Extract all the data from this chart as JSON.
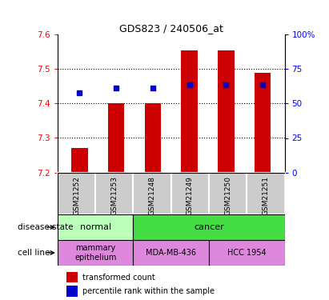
{
  "title": "GDS823 / 240506_at",
  "samples": [
    "GSM21252",
    "GSM21253",
    "GSM21248",
    "GSM21249",
    "GSM21250",
    "GSM21251"
  ],
  "bar_bottoms": [
    7.2,
    7.2,
    7.2,
    7.2,
    7.2,
    7.2
  ],
  "bar_tops": [
    7.27,
    7.4,
    7.4,
    7.555,
    7.555,
    7.49
  ],
  "percentile_values": [
    7.43,
    7.445,
    7.445,
    7.455,
    7.455,
    7.455
  ],
  "ylim_left": [
    7.2,
    7.6
  ],
  "ylim_right": [
    0,
    100
  ],
  "yticks_left": [
    7.2,
    7.3,
    7.4,
    7.5,
    7.6
  ],
  "yticks_right": [
    0,
    25,
    50,
    75,
    100
  ],
  "ytick_right_labels": [
    "0",
    "25",
    "50",
    "75",
    "100%"
  ],
  "bar_color": "#cc0000",
  "blue_color": "#0000cc",
  "grid_dotted_at": [
    7.3,
    7.4,
    7.5
  ],
  "normal_color": "#bbffbb",
  "cancer_color": "#44dd44",
  "cell_line_color": "#dd88dd",
  "sample_bg_color": "#cccccc",
  "legend_bar_label": "transformed count",
  "legend_sq_label": "percentile rank within the sample",
  "disease_label": "disease state",
  "cell_line_label": "cell line",
  "disease_normal_label": "normal",
  "disease_cancer_label": "cancer",
  "cell_mammary_label": "mammary\nepithelium",
  "cell_mda_label": "MDA-MB-436",
  "cell_hcc_label": "HCC 1954"
}
